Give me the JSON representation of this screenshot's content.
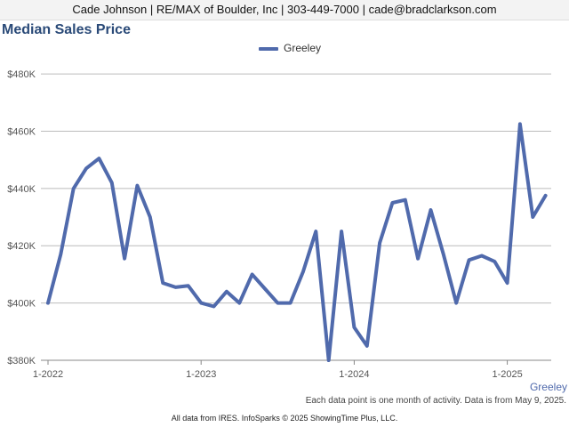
{
  "header": {
    "contact_line": "Cade Johnson | RE/MAX of Boulder, Inc | 303-449-7000 | cade@bradclarkson.com"
  },
  "chart_data": {
    "type": "line",
    "title": "Median Sales Price",
    "ylim": [
      380000,
      485000
    ],
    "yticks": [
      380000,
      400000,
      420000,
      440000,
      460000,
      480000
    ],
    "ytick_labels": [
      "$380K",
      "$400K",
      "$420K",
      "$440K",
      "$460K",
      "$480K"
    ],
    "xtick_labels": [
      "1-2022",
      "1-2023",
      "1-2024",
      "1-2025"
    ],
    "xtick_positions": [
      "1-2022",
      "1-2023",
      "1-2024",
      "1-2025"
    ],
    "grid": true,
    "legend_position": "top-center",
    "x": [
      "1-2022",
      "2-2022",
      "3-2022",
      "4-2022",
      "5-2022",
      "6-2022",
      "7-2022",
      "8-2022",
      "9-2022",
      "10-2022",
      "11-2022",
      "12-2022",
      "1-2023",
      "2-2023",
      "3-2023",
      "4-2023",
      "5-2023",
      "6-2023",
      "7-2023",
      "8-2023",
      "9-2023",
      "10-2023",
      "11-2023",
      "12-2023",
      "1-2024",
      "2-2024",
      "3-2024",
      "4-2024",
      "5-2024",
      "6-2024",
      "7-2024",
      "8-2024",
      "9-2024",
      "10-2024",
      "11-2024",
      "12-2024",
      "1-2025",
      "2-2025",
      "3-2025",
      "4-2025"
    ],
    "series": [
      {
        "name": "Greeley",
        "color": "#506aac",
        "values": [
          400000,
          417000,
          440000,
          447000,
          450500,
          442000,
          415500,
          441000,
          430000,
          407000,
          405500,
          406000,
          400000,
          398800,
          404000,
          400000,
          410000,
          405000,
          400000,
          400000,
          411000,
          425000,
          380000,
          425000,
          391500,
          385000,
          421000,
          435000,
          436000,
          415500,
          432500,
          417000,
          400000,
          415000,
          416500,
          414500,
          407000,
          462500,
          430000,
          437500
        ]
      }
    ]
  },
  "legend": {
    "label": "Greeley"
  },
  "series_label_right": "Greeley",
  "note": "Each data point is one month of activity. Data is from May 9, 2025.",
  "footer": "All data from IRES. InfoSparks © 2025 ShowingTime Plus, LLC."
}
